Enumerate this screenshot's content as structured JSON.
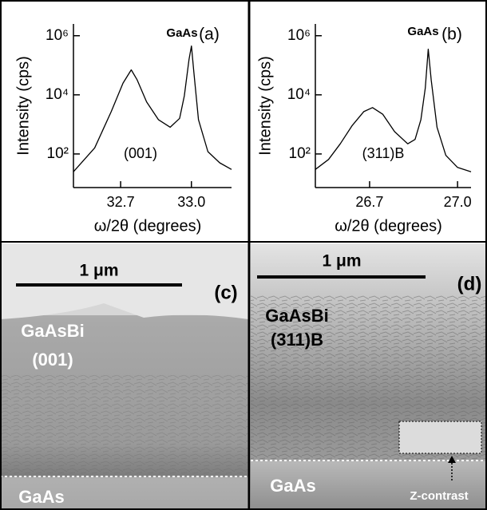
{
  "chart_data": [
    {
      "type": "line",
      "x_label": "ω/2θ (degrees)",
      "y_label": "Intensity (cps)",
      "annotations": [
        "GaAs",
        "(a)",
        "(001)"
      ],
      "x": [
        32.5,
        32.59,
        32.66,
        32.71,
        32.745,
        32.77,
        32.81,
        32.86,
        32.91,
        32.95,
        32.97,
        32.99,
        33.0,
        33.01,
        33.03,
        33.07,
        33.12,
        33.17
      ],
      "series": [
        {
          "color": "#000000",
          "values": [
            25,
            160,
            2700,
            25000,
            70000,
            32000,
            5800,
            1450,
            800,
            1600,
            9300,
            160000,
            450000,
            63000,
            1450,
            120,
            50,
            30
          ]
        }
      ],
      "xlim": [
        32.5,
        33.17
      ],
      "xticks": [
        32.7,
        {
          "value": 33,
          "label": "33.0"
        }
      ],
      "ylim": [
        7.3,
        2500000
      ],
      "log_y": true,
      "yticks": [
        {
          "value": 100,
          "label": "10²"
        },
        {
          "value": 10000,
          "label": "10⁴"
        },
        {
          "value": 1000000,
          "label": "10⁶"
        }
      ]
    },
    {
      "type": "line",
      "x_label": "ω/2θ (degrees)",
      "y_label": "Intensity (cps)",
      "annotations": [
        "GaAs",
        "(b)",
        "(311)B"
      ],
      "x": [
        26.515,
        26.56,
        26.6,
        26.64,
        26.68,
        26.71,
        26.745,
        26.785,
        26.83,
        26.855,
        26.875,
        26.89,
        26.9,
        26.91,
        26.93,
        26.96,
        27.0,
        27.046
      ],
      "series": [
        {
          "color": "#000000",
          "values": [
            30,
            65,
            220,
            900,
            2700,
            3700,
            2200,
            570,
            220,
            310,
            1450,
            17000,
            350000,
            32000,
            800,
            90,
            35,
            25
          ]
        }
      ],
      "xlim": [
        26.515,
        27.046
      ],
      "xticks": [
        26.7,
        {
          "value": 27,
          "label": "27.0"
        }
      ],
      "ylim": [
        7.3,
        2500000
      ],
      "log_y": true,
      "yticks": [
        {
          "value": 100,
          "label": "10²"
        },
        {
          "value": 10000,
          "label": "10⁴"
        },
        {
          "value": 1000000,
          "label": "10⁶"
        }
      ]
    }
  ],
  "panels": [
    {
      "scale_bar": "1 μm",
      "label": "(c)",
      "layer": "GaAsBi",
      "orientation": "(001)",
      "substrate": "GaAs"
    },
    {
      "scale_bar": "1 μm",
      "label": "(d)",
      "layer": "GaAsBi",
      "orientation": "(311)B",
      "substrate": "GaAs",
      "note": "Z-contrast"
    }
  ]
}
